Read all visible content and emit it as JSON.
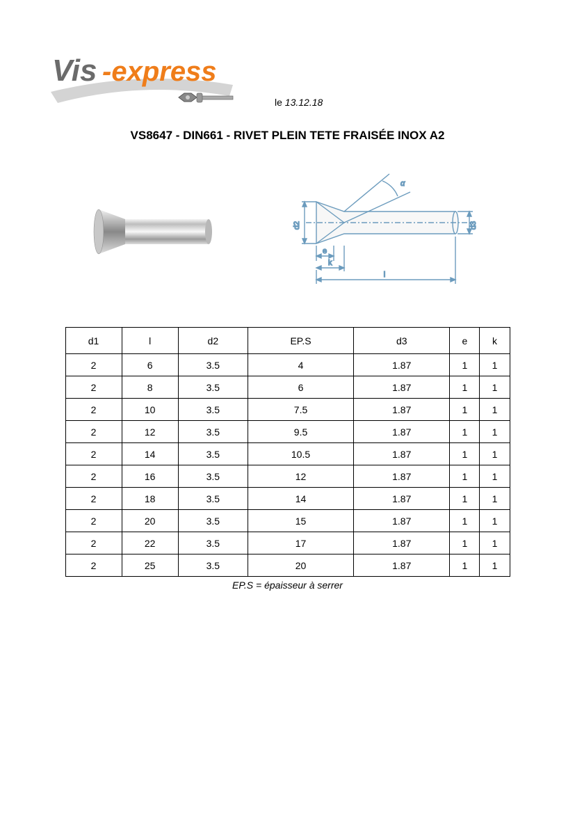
{
  "logo": {
    "text1": "Vis",
    "text2": "-express",
    "color1": "#6b6b6b",
    "color2": "#ef7d1a",
    "swoosh_color": "#d4d4d4"
  },
  "date_prefix": "le ",
  "date": "13.12.18",
  "title": "VS8647 - DIN661 - RIVET PLEIN TETE FRAISÉE INOX A2",
  "diagram_labels": {
    "d2": "d2",
    "d3": "d3",
    "alpha": "α",
    "e": "e",
    "k": "k",
    "l": "l"
  },
  "table": {
    "columns": [
      "d1",
      "l",
      "d2",
      "EP.S",
      "d3",
      "e",
      "k"
    ],
    "rows": [
      [
        "2",
        "6",
        "3.5",
        "4",
        "1.87",
        "1",
        "1"
      ],
      [
        "2",
        "8",
        "3.5",
        "6",
        "1.87",
        "1",
        "1"
      ],
      [
        "2",
        "10",
        "3.5",
        "7.5",
        "1.87",
        "1",
        "1"
      ],
      [
        "2",
        "12",
        "3.5",
        "9.5",
        "1.87",
        "1",
        "1"
      ],
      [
        "2",
        "14",
        "3.5",
        "10.5",
        "1.87",
        "1",
        "1"
      ],
      [
        "2",
        "16",
        "3.5",
        "12",
        "1.87",
        "1",
        "1"
      ],
      [
        "2",
        "18",
        "3.5",
        "14",
        "1.87",
        "1",
        "1"
      ],
      [
        "2",
        "20",
        "3.5",
        "15",
        "1.87",
        "1",
        "1"
      ],
      [
        "2",
        "22",
        "3.5",
        "17",
        "1.87",
        "1",
        "1"
      ],
      [
        "2",
        "25",
        "3.5",
        "20",
        "1.87",
        "1",
        "1"
      ]
    ],
    "cell_fontsize": 14,
    "border_color": "#000000",
    "background_color": "#ffffff"
  },
  "footnote": "EP.S = épaisseur à serrer",
  "colors": {
    "text": "#000000",
    "diagram_line": "#6b9bbd",
    "diagram_fill": "#e8e8e8",
    "rivet_dark": "#7a7a7a",
    "rivet_light": "#e6e6e6"
  }
}
